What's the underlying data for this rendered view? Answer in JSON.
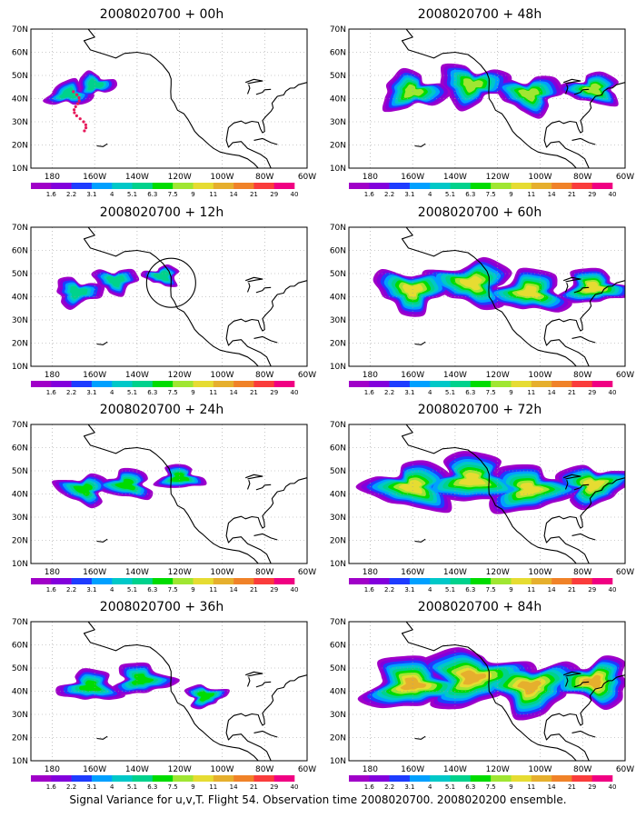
{
  "panels": [
    {
      "title": "2008020700 + 00h",
      "lead": 0
    },
    {
      "title": "2008020700 + 48h",
      "lead": 48
    },
    {
      "title": "2008020700 + 12h",
      "lead": 12
    },
    {
      "title": "2008020700 + 60h",
      "lead": 60
    },
    {
      "title": "2008020700 + 24h",
      "lead": 24
    },
    {
      "title": "2008020700 + 72h",
      "lead": 72
    },
    {
      "title": "2008020700 + 36h",
      "lead": 36
    },
    {
      "title": "2008020700 + 84h",
      "lead": 84
    }
  ],
  "map": {
    "lon_labels": [
      "180",
      "160W",
      "140W",
      "120W",
      "100W",
      "80W",
      "60W"
    ],
    "lat_labels": [
      "10N",
      "20N",
      "30N",
      "40N",
      "50N",
      "60N",
      "70N"
    ],
    "lon_range": [
      170,
      300
    ],
    "lat_range": [
      10,
      70
    ]
  },
  "colorbar": {
    "labels": [
      "1.6",
      "2.2",
      "3.1",
      "4",
      "5.1",
      "6.3",
      "7.5",
      "9",
      "11",
      "14",
      "21",
      "29",
      "40"
    ],
    "colors": [
      "#a000c8",
      "#8200dc",
      "#1e3cff",
      "#00a0ff",
      "#00c8c8",
      "#00d28c",
      "#00dc00",
      "#a0e632",
      "#e6dc32",
      "#e6af2d",
      "#f08228",
      "#fa3c3c",
      "#f00082"
    ]
  },
  "footer": "Signal Variance for u,v,T. Flight 54. Observation time 2008020700. 2008020200 ensemble."
}
